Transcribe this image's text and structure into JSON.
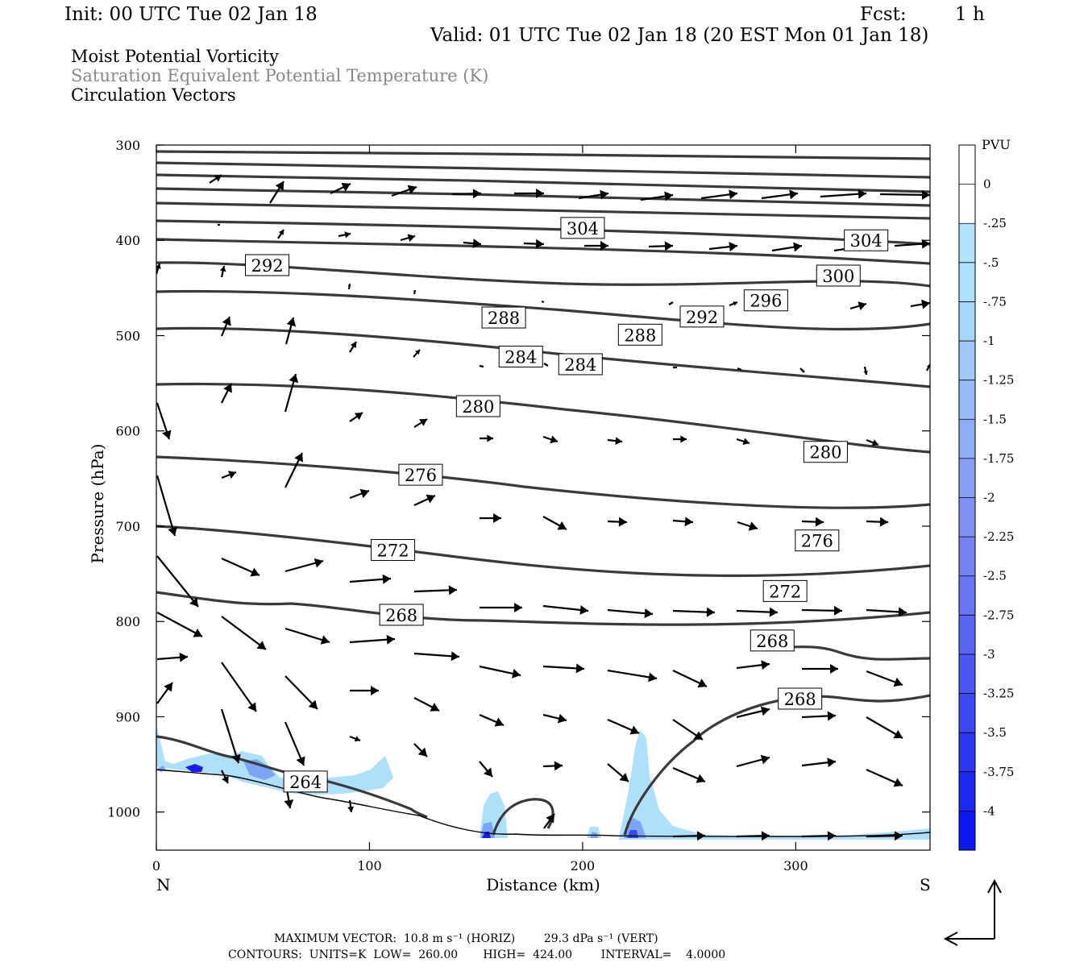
{
  "header": {
    "init": "Init: 00 UTC Tue 02 Jan 18",
    "fcst_label": "Fcst:",
    "fcst_value": "1 h",
    "valid": "Valid: 01 UTC Tue 02 Jan 18 (20 EST Mon 01 Jan 18)"
  },
  "titles": {
    "line1": "Moist Potential Vorticity",
    "line2": "Saturation Equivalent Potential Temperature (K)",
    "line3": "Circulation Vectors"
  },
  "footer": {
    "max_vector": "MAXIMUM VECTOR:  10.8 m s⁻¹ (HORIZ)        29.3 dPa s⁻¹ (VERT)",
    "contours": "CONTOURS:  UNITS=K  LOW=  260.00       HIGH=  424.00        INTERVAL=    4.0000"
  },
  "colors": {
    "contour": "#3a3a3a",
    "pv_fill_light": "#aee0fa",
    "pv_fill_mid": "#7aa6f4",
    "pv_fill_dark": "#1c1cf0"
  },
  "chart_data": {
    "type": "cross-section contour",
    "xlabel": "Distance (km)",
    "ylabel": "Pressure (hPa)",
    "xlim": [
      0,
      363
    ],
    "ylim": [
      1040,
      300
    ],
    "x_ticks": [
      "0",
      "100",
      "200",
      "300"
    ],
    "y_ticks": [
      "300",
      "400",
      "500",
      "600",
      "700",
      "800",
      "900",
      "1000"
    ],
    "endpoints": {
      "left": "N",
      "right": "S"
    },
    "colorbar": {
      "label": "PVU",
      "ticks": [
        "0",
        "-.25",
        "-.5",
        "-.75",
        "-1",
        "-1.25",
        "-1.5",
        "-1.75",
        "-2",
        "-2.25",
        "-2.5",
        "-2.75",
        "-3",
        "-3.25",
        "-3.5",
        "-3.75",
        "-4"
      ],
      "colors": [
        "#ffffff",
        "#ffffff",
        "#b3e2fb",
        "#ace0fb",
        "#a6d6fa",
        "#9fc9f8",
        "#97bbf6",
        "#8fadf5",
        "#879ff3",
        "#7f91f2",
        "#7483f1",
        "#6775f0",
        "#5967f0",
        "#4a57f0",
        "#3b47f0",
        "#2c37f0",
        "#1c28f0",
        "#0c18f0"
      ]
    },
    "contour_labels": [
      {
        "label": "304",
        "x": 200,
        "p": 387
      },
      {
        "label": "304",
        "x": 333,
        "p": 400
      },
      {
        "label": "300",
        "x": 320,
        "p": 437
      },
      {
        "label": "296",
        "x": 286,
        "p": 463
      },
      {
        "label": "292",
        "x": 52,
        "p": 426
      },
      {
        "label": "292",
        "x": 256,
        "p": 480
      },
      {
        "label": "288",
        "x": 163,
        "p": 481
      },
      {
        "label": "288",
        "x": 227,
        "p": 499
      },
      {
        "label": "284",
        "x": 171,
        "p": 522
      },
      {
        "label": "284",
        "x": 199,
        "p": 530
      },
      {
        "label": "280",
        "x": 151,
        "p": 574
      },
      {
        "label": "280",
        "x": 314,
        "p": 622
      },
      {
        "label": "276",
        "x": 124,
        "p": 646
      },
      {
        "label": "276",
        "x": 310,
        "p": 715
      },
      {
        "label": "272",
        "x": 111,
        "p": 725
      },
      {
        "label": "272",
        "x": 295,
        "p": 768
      },
      {
        "label": "268",
        "x": 115,
        "p": 793
      },
      {
        "label": "268",
        "x": 289,
        "p": 820
      },
      {
        "label": "268",
        "x": 302,
        "p": 881
      },
      {
        "label": "264",
        "x": 70,
        "p": 968
      }
    ]
  }
}
